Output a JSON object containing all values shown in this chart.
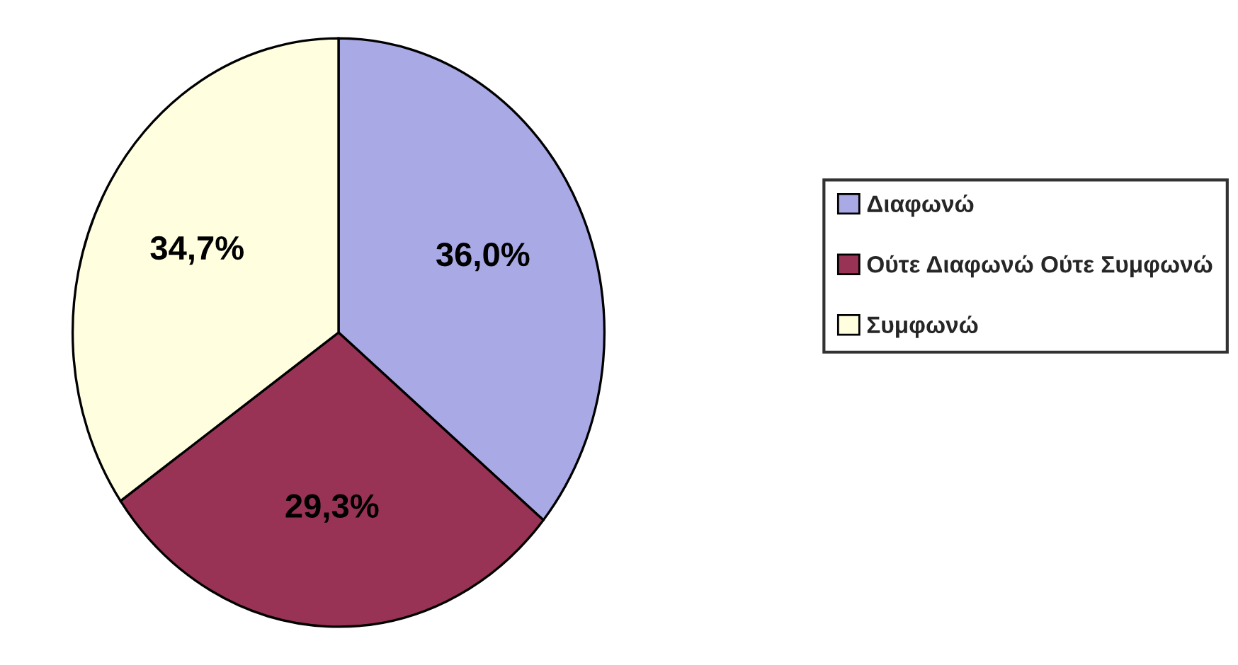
{
  "chart_data": {
    "type": "pie",
    "categories": [
      "Διαφωνώ",
      "Ούτε Διαφωνώ Ούτε Συμφωνώ",
      "Συμφωνώ"
    ],
    "values": [
      36.0,
      29.3,
      34.7
    ],
    "colors": [
      "#a9a9e6",
      "#993356",
      "#ffffe0"
    ],
    "value_labels": [
      "36,0%",
      "29,3%",
      "34,7%"
    ],
    "legend": "right"
  }
}
